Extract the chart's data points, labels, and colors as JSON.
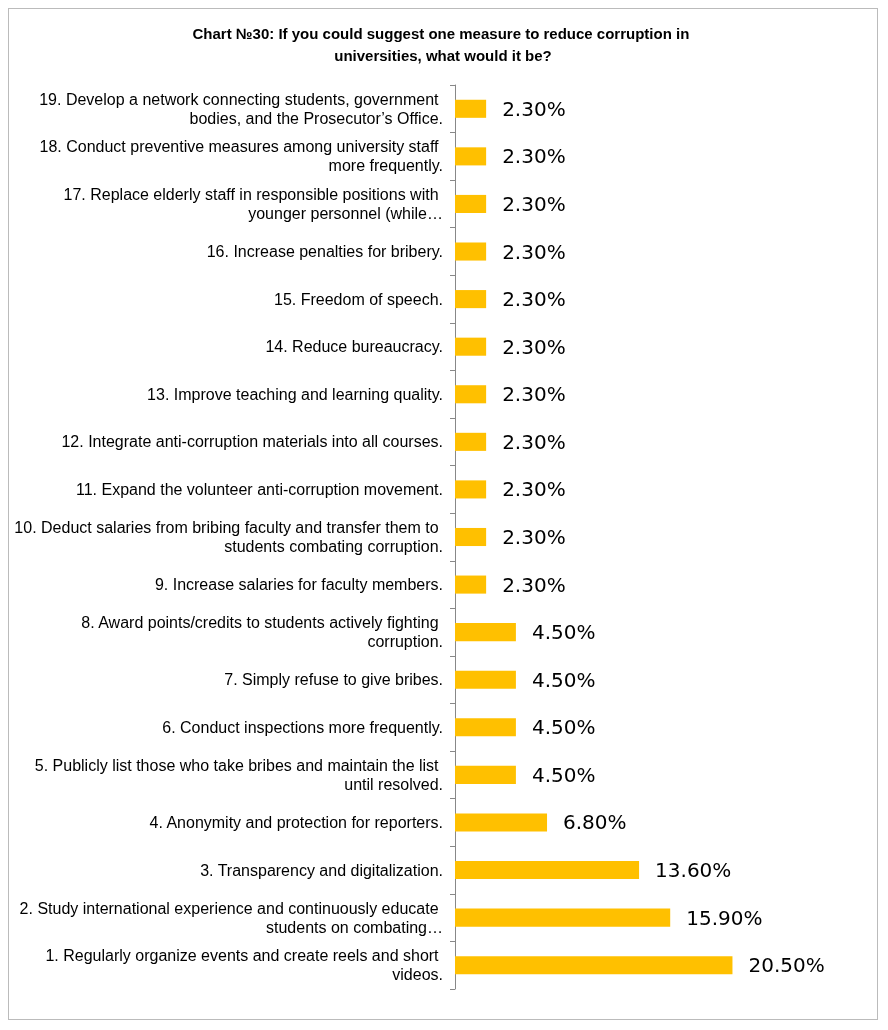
{
  "chart_data": {
    "type": "bar",
    "orientation": "horizontal",
    "title": "Chart №30: If you could suggest one measure to reduce corruption in universities, what would it be?",
    "categories": [
      "19. Develop a network connecting students, government bodies, and the Prosecutor’s Office.",
      "18. Conduct preventive measures among university staff more frequently.",
      "17. Replace elderly staff in responsible positions with younger personnel (while…",
      "16. Increase penalties for bribery.",
      "15. Freedom of speech.",
      "14. Reduce bureaucracy.",
      "13. Improve teaching and learning quality.",
      "12. Integrate anti-corruption materials into all courses.",
      "11. Expand the volunteer anti-corruption movement.",
      "10. Deduct salaries from bribing faculty and transfer them to students combating corruption.",
      "9. Increase salaries for faculty members.",
      "8. Award points/credits to students actively fighting corruption.",
      "7. Simply refuse to give bribes.",
      "6. Conduct inspections more frequently.",
      "5. Publicly list those who take bribes and maintain the list until resolved.",
      "4. Anonymity and protection for reporters.",
      "3. Transparency and digitalization.",
      "2. Study international experience and continuously educate students on combating…",
      "1. Regularly organize events and create reels and short videos."
    ],
    "values": [
      2.3,
      2.3,
      2.3,
      2.3,
      2.3,
      2.3,
      2.3,
      2.3,
      2.3,
      2.3,
      2.3,
      4.5,
      4.5,
      4.5,
      4.5,
      6.8,
      13.6,
      15.9,
      20.5
    ],
    "value_labels": [
      "2.30%",
      "2.30%",
      "2.30%",
      "2.30%",
      "2.30%",
      "2.30%",
      "2.30%",
      "2.30%",
      "2.30%",
      "2.30%",
      "2.30%",
      "4.50%",
      "4.50%",
      "4.50%",
      "4.50%",
      "6.80%",
      "13.60%",
      "15.90%",
      "20.50%"
    ],
    "color": "#ffc000"
  }
}
